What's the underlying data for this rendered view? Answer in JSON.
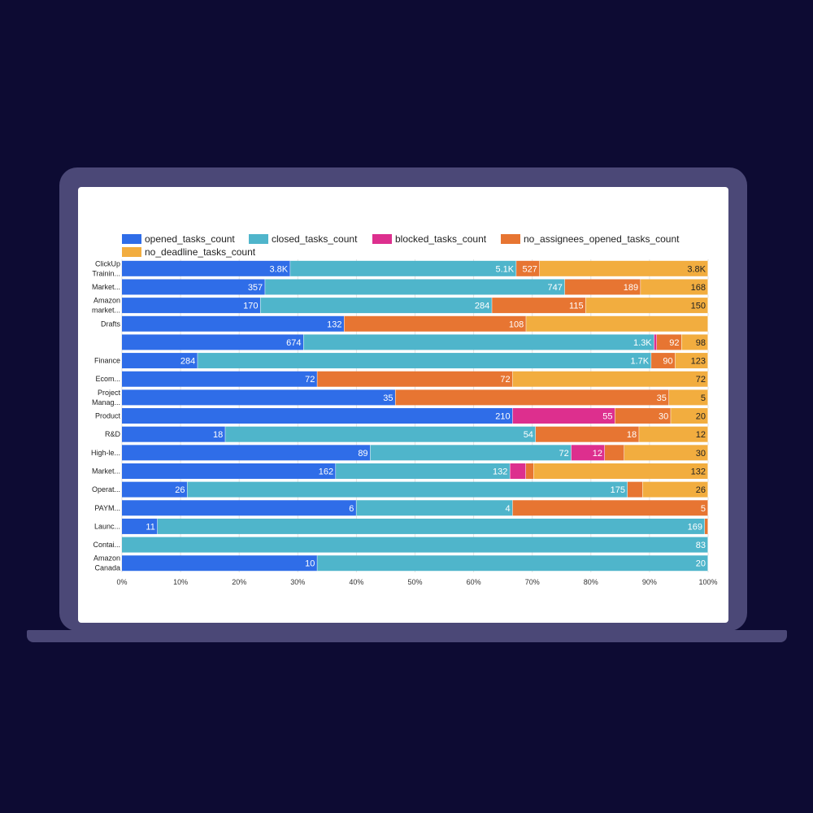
{
  "chart_data": {
    "type": "bar",
    "stacked": true,
    "orientation": "horizontal",
    "normalized": "percent",
    "categories": [
      "ClickUp Trainin...",
      "Market...",
      "Amazon market...",
      "Drafts",
      "",
      "Finance",
      "Ecom...",
      "Project Manag...",
      "Product",
      "R&D",
      "High-le...",
      "Market...",
      "Operat...",
      "PAYM...",
      "Launc...",
      "Contai...",
      "Amazon Canada"
    ],
    "series": [
      {
        "name": "opened_tasks_count",
        "color": "#2f6de8",
        "values": [
          3800,
          357,
          170,
          132,
          674,
          284,
          72,
          35,
          210,
          18,
          89,
          162,
          26,
          6,
          11,
          0,
          10
        ],
        "labels": [
          "3.8K",
          "357",
          "170",
          "132",
          "674",
          "284",
          "72",
          "35",
          "210",
          "18",
          "89",
          "162",
          "26",
          "6",
          "11",
          "0",
          "10"
        ]
      },
      {
        "name": "closed_tasks_count",
        "color": "#4fb5cb",
        "values": [
          5100,
          747,
          284,
          0,
          1300,
          1700,
          0,
          0,
          0,
          54,
          72,
          132,
          175,
          4,
          169,
          83,
          20
        ],
        "labels": [
          "5.1K",
          "747",
          "284",
          "",
          "1.3K",
          "1.7K",
          "",
          "",
          "",
          "54",
          "72",
          "132",
          "175",
          "4",
          "169",
          "83",
          "20"
        ]
      },
      {
        "name": "blocked_tasks_count",
        "color": "#dd2f8e",
        "values": [
          0,
          0,
          0,
          0,
          10,
          0,
          0,
          0,
          55,
          0,
          12,
          12,
          0,
          0,
          0,
          0,
          0
        ],
        "labels": [
          "",
          "0",
          "0",
          "0",
          "",
          "",
          "0",
          "0",
          "55",
          "0",
          "12",
          "12",
          "",
          "0",
          "",
          "",
          ""
        ]
      },
      {
        "name": "no_assignees_opened_tasks_count",
        "color": "#e77532",
        "values": [
          527,
          189,
          115,
          108,
          92,
          90,
          72,
          35,
          30,
          18,
          7,
          6,
          6,
          5,
          1,
          0,
          0
        ],
        "labels": [
          "527",
          "189",
          "115",
          "108",
          "92",
          "90",
          "72",
          "35",
          "30",
          "18",
          "7",
          "6",
          "6",
          "5",
          "",
          "",
          ""
        ]
      },
      {
        "name": "no_deadline_tasks_count",
        "color": "#f2ad3f",
        "values": [
          3800,
          168,
          150,
          108,
          98,
          123,
          72,
          5,
          20,
          12,
          30,
          132,
          26,
          0,
          0,
          0,
          0
        ],
        "labels": [
          "3.8K",
          "168",
          "150",
          "",
          "98",
          "123",
          "72",
          "5",
          "20",
          "12",
          "30",
          "132",
          "26",
          "",
          "",
          "",
          ""
        ]
      }
    ],
    "xaxis": {
      "ticks": [
        "0%",
        "10%",
        "20%",
        "30%",
        "40%",
        "50%",
        "60%",
        "70%",
        "80%",
        "90%",
        "100%"
      ],
      "range": [
        0,
        100
      ]
    },
    "legend_position": "top-left",
    "grid": true
  }
}
